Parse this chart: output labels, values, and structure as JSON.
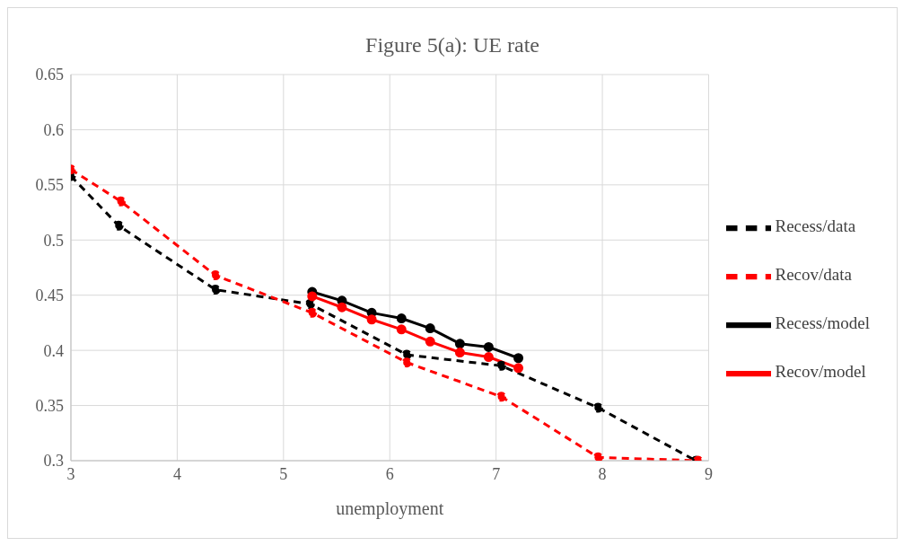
{
  "chart_data": {
    "type": "line",
    "title": "Figure 5(a): UE rate",
    "xlabel": "unemployment",
    "xlim": [
      3,
      9
    ],
    "xticks": [
      3,
      4,
      5,
      6,
      7,
      8,
      9
    ],
    "ylim": [
      0.3,
      0.65
    ],
    "yticks": [
      0.3,
      0.35,
      0.4,
      0.45,
      0.5,
      0.55,
      0.6,
      0.65
    ],
    "grid": true,
    "legend": "right",
    "marker": "circle",
    "series": [
      {
        "name": "Recess/data",
        "color": "#000000",
        "line_style": "dashed",
        "x": [
          3,
          3.45,
          4.36,
          5.25,
          6.16,
          7.05,
          7.96,
          8.88
        ],
        "values": [
          0.558,
          0.513,
          0.455,
          0.442,
          0.396,
          0.386,
          0.348,
          0.3
        ]
      },
      {
        "name": "Recov/data",
        "color": "#ff0000",
        "line_style": "dashed",
        "x": [
          3,
          3.47,
          4.36,
          5.27,
          6.16,
          7.05,
          7.96,
          8.9
        ],
        "values": [
          0.564,
          0.535,
          0.468,
          0.434,
          0.389,
          0.358,
          0.303,
          0.3
        ]
      },
      {
        "name": "Recess/model",
        "color": "#000000",
        "line_style": "solid",
        "x": [
          5.27,
          5.55,
          5.83,
          6.11,
          6.38,
          6.66,
          6.93,
          7.21
        ],
        "values": [
          0.453,
          0.445,
          0.434,
          0.429,
          0.42,
          0.406,
          0.403,
          0.393
        ]
      },
      {
        "name": "Recov/model",
        "color": "#ff0000",
        "line_style": "solid",
        "x": [
          5.27,
          5.55,
          5.83,
          6.11,
          6.38,
          6.66,
          6.93,
          7.21
        ],
        "values": [
          0.449,
          0.439,
          0.428,
          0.419,
          0.408,
          0.398,
          0.394,
          0.384
        ]
      }
    ]
  }
}
